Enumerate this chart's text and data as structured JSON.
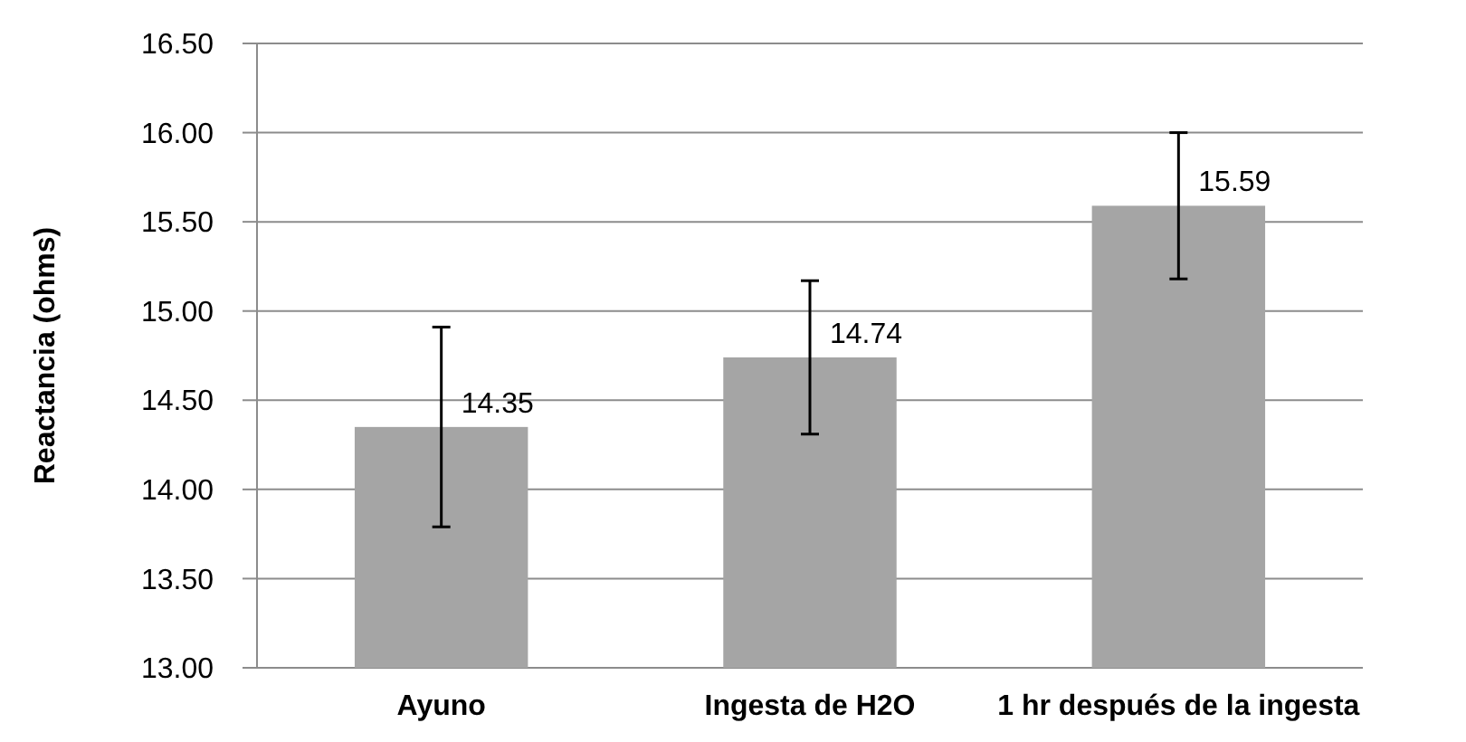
{
  "chart_data": {
    "type": "bar",
    "ylabel": "Reactancia (ohms)",
    "categories": [
      "Ayuno",
      "Ingesta de H2O",
      "1 hr después de la ingesta"
    ],
    "values": [
      14.35,
      14.74,
      15.59
    ],
    "color": "#a5a5a5",
    "errors": [
      0.56,
      0.43,
      0.41
    ],
    "data_labels": true,
    "ylim": [
      13,
      16.5
    ],
    "yticks": [
      {
        "value": 13,
        "label": "13.00"
      },
      {
        "value": 13.5,
        "label": "13.50"
      },
      {
        "value": 14,
        "label": "14.00"
      },
      {
        "value": 14.5,
        "label": "14.50"
      },
      {
        "value": 15,
        "label": "15.00"
      },
      {
        "value": 15.5,
        "label": "15.50"
      },
      {
        "value": 16,
        "label": "16.00"
      },
      {
        "value": 16.5,
        "label": "16.50"
      }
    ],
    "grid": "y"
  }
}
